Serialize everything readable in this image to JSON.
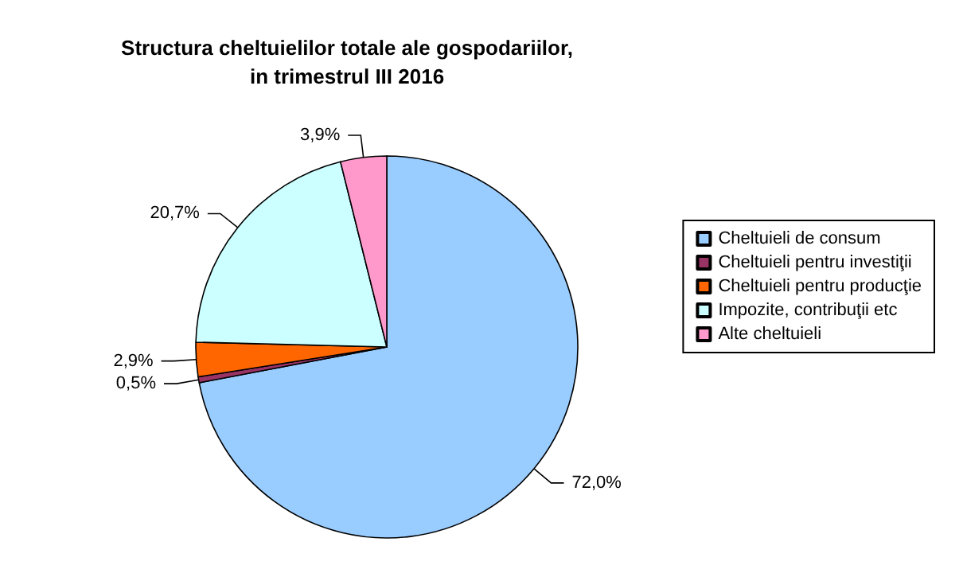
{
  "chart_data": {
    "type": "pie",
    "title": "Structura cheltuielilor totale ale gospodariilor,\nin trimestrul III 2016",
    "categories": [
      "Cheltuieli de consum",
      "Cheltuieli pentru investiţii",
      "Cheltuieli pentru producţie",
      "Impozite, contribuţii etc",
      "Alte cheltuieli"
    ],
    "values": [
      72.0,
      0.5,
      2.9,
      20.7,
      3.9
    ],
    "value_labels": [
      "72,0%",
      "0,5%",
      "2,9%",
      "20,7%",
      "3,9%"
    ],
    "colors": [
      "#99ccff",
      "#993366",
      "#ff6600",
      "#ccffff",
      "#ff99cc"
    ],
    "legend": "right"
  }
}
